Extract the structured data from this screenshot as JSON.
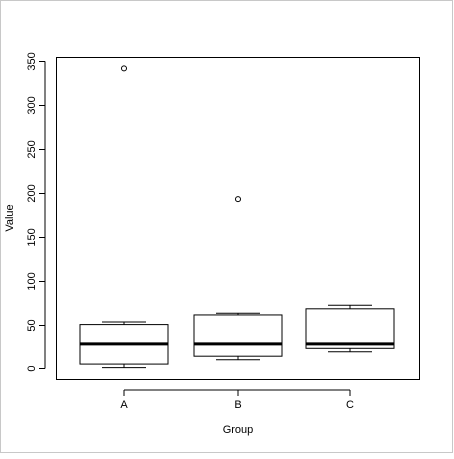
{
  "chart_data": {
    "type": "boxplot",
    "xlabel": "Group",
    "ylabel": "Value",
    "categories": [
      "A",
      "B",
      "C"
    ],
    "ylim": [
      -12,
      355
    ],
    "yticks": [
      0,
      50,
      100,
      150,
      200,
      250,
      300,
      350
    ],
    "ytick_labels": [
      "0",
      "50",
      "100",
      "150",
      "200",
      "250",
      "300",
      "350"
    ],
    "boxes": [
      {
        "category": "A",
        "whisker_low": 1,
        "q1": 5,
        "median": 28,
        "q3": 50,
        "whisker_high": 53,
        "outliers": [
          342
        ]
      },
      {
        "category": "B",
        "whisker_low": 10,
        "q1": 14,
        "median": 28,
        "q3": 61,
        "whisker_high": 63,
        "outliers": [
          193
        ]
      },
      {
        "category": "C",
        "whisker_low": 19,
        "q1": 23,
        "median": 28,
        "q3": 68,
        "whisker_high": 72,
        "outliers": []
      }
    ],
    "grid": false,
    "legend": "none"
  }
}
